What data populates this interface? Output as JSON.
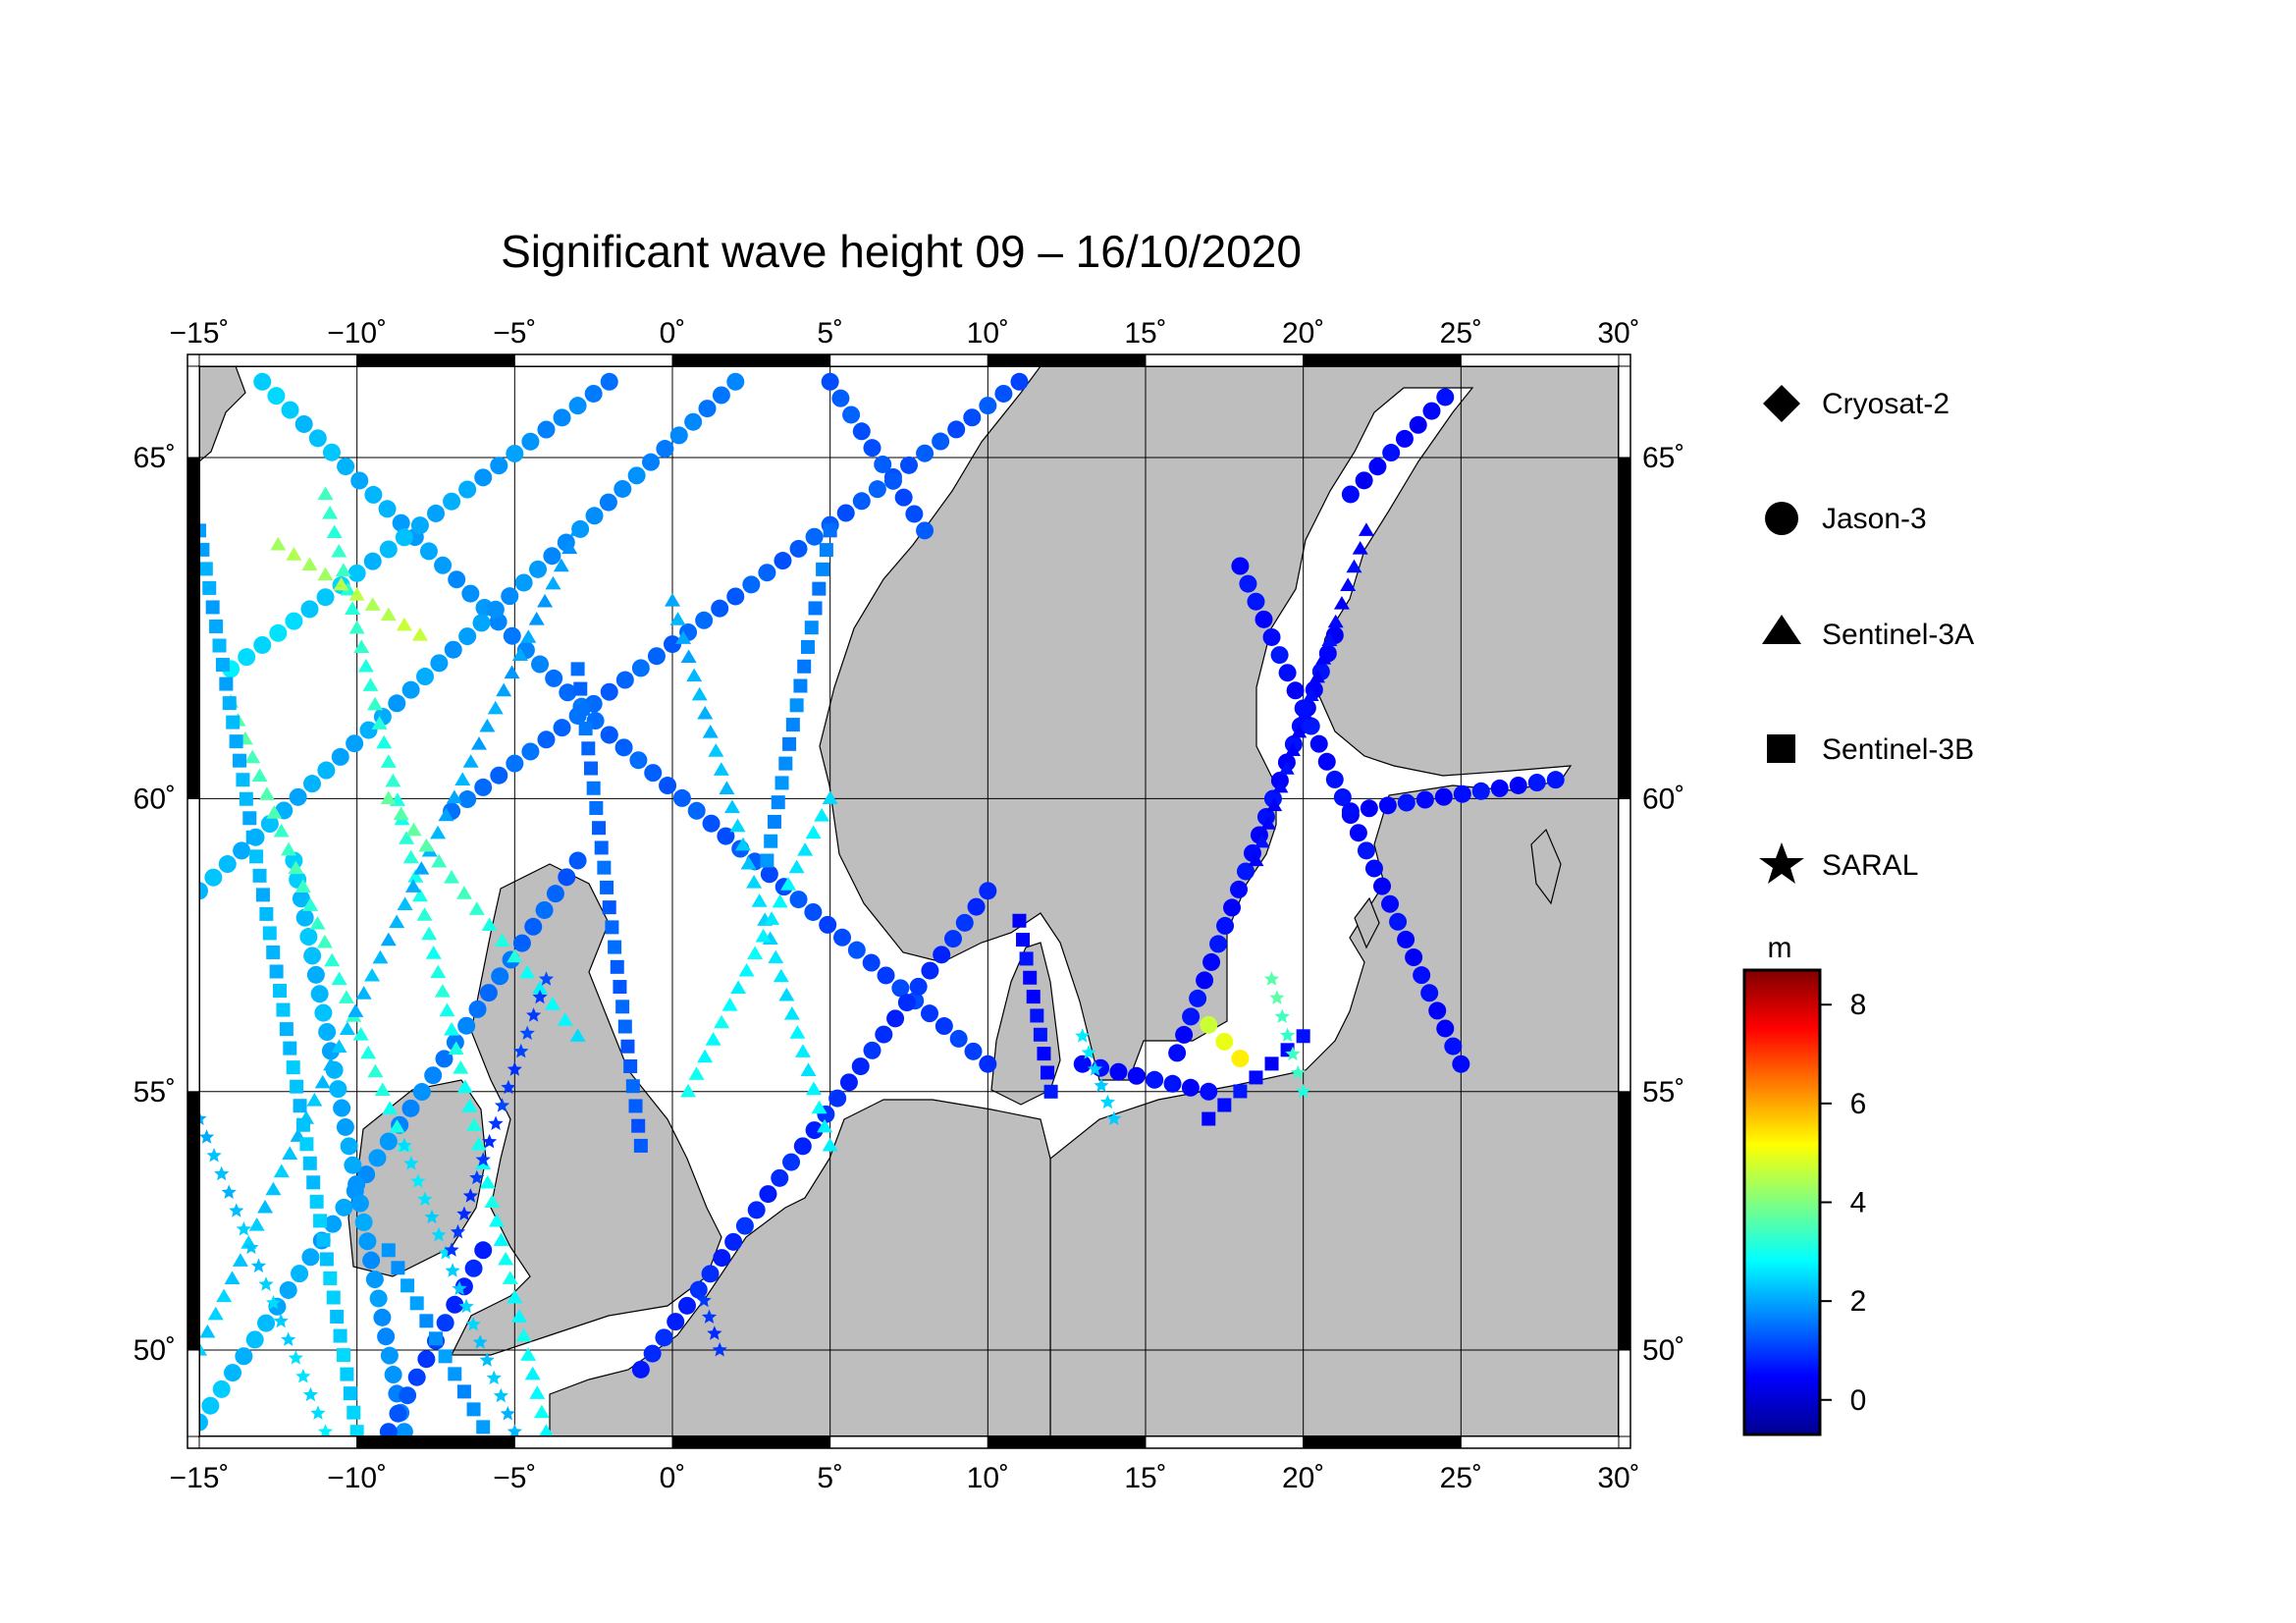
{
  "title": "Significant wave height 09 – 16/10/2020",
  "map": {
    "projection": "Mercator",
    "lon_range": [
      -15,
      30
    ],
    "lat_range": [
      48.2,
      66.2
    ],
    "lon_ticks": [
      {
        "value": -15,
        "label": "−15˚"
      },
      {
        "value": -10,
        "label": "−10˚"
      },
      {
        "value": -5,
        "label": "−5˚"
      },
      {
        "value": 0,
        "label": "0˚"
      },
      {
        "value": 5,
        "label": "5˚"
      },
      {
        "value": 10,
        "label": "10˚"
      },
      {
        "value": 15,
        "label": "15˚"
      },
      {
        "value": 20,
        "label": "20˚"
      },
      {
        "value": 25,
        "label": "25˚"
      },
      {
        "value": 30,
        "label": "30˚"
      }
    ],
    "lat_ticks": [
      {
        "value": 50,
        "label": "50˚"
      },
      {
        "value": 55,
        "label": "55˚"
      },
      {
        "value": 60,
        "label": "60˚"
      },
      {
        "value": 65,
        "label": "65˚"
      }
    ],
    "land_color": "#bebebe",
    "sea_color": "#ffffff",
    "grid": true
  },
  "legend": {
    "placement": "right",
    "items": [
      {
        "label": "Cryosat-2",
        "symbol": "diamond"
      },
      {
        "label": "Jason-3",
        "symbol": "circle"
      },
      {
        "label": "Sentinel-3A",
        "symbol": "triangle"
      },
      {
        "label": "Sentinel-3B",
        "symbol": "square"
      },
      {
        "label": "SARAL",
        "symbol": "star"
      }
    ]
  },
  "colorbar": {
    "unit": "m",
    "range": [
      -0.7,
      8.7
    ],
    "ticks": [
      {
        "value": 0,
        "label": "0"
      },
      {
        "value": 2,
        "label": "2"
      },
      {
        "value": 4,
        "label": "4"
      },
      {
        "value": 6,
        "label": "6"
      },
      {
        "value": 8,
        "label": "8"
      }
    ],
    "colormap": [
      "#00008f",
      "#0000ff",
      "#0080ff",
      "#00ffff",
      "#80ff80",
      "#ffff00",
      "#ff8000",
      "#ff0000",
      "#800000"
    ]
  },
  "chart_data": {
    "type": "scatter",
    "x_label": "",
    "y_label": "",
    "color_variable": "significant wave height (m)",
    "tracks": [
      {
        "satellite": "Jason-3",
        "symbol": "circle",
        "from": [
          -13,
          66
        ],
        "to": [
          -2,
          61
        ],
        "hs": [
          2.4,
          1.4
        ]
      },
      {
        "satellite": "Jason-3",
        "symbol": "circle",
        "from": [
          -2,
          61
        ],
        "to": [
          10,
          55.5
        ],
        "hs": [
          1.4,
          1.0
        ]
      },
      {
        "satellite": "Jason-3",
        "symbol": "circle",
        "from": [
          2,
          66
        ],
        "to": [
          -15,
          58.5
        ],
        "hs": [
          1.6,
          2.2
        ]
      },
      {
        "satellite": "Jason-3",
        "symbol": "circle",
        "from": [
          10,
          58.5
        ],
        "to": [
          -1,
          49.6
        ],
        "hs": [
          0.9,
          0.8
        ]
      },
      {
        "satellite": "Jason-3",
        "symbol": "circle",
        "from": [
          11,
          66
        ],
        "to": [
          -7,
          59.8
        ],
        "hs": [
          1.2,
          1.5
        ]
      },
      {
        "satellite": "Jason-3",
        "symbol": "circle",
        "from": [
          -3,
          59
        ],
        "to": [
          -15,
          48.5
        ],
        "hs": [
          1.3,
          2.3
        ]
      },
      {
        "satellite": "Jason-3",
        "symbol": "circle",
        "from": [
          -2,
          66
        ],
        "to": [
          -14,
          62
        ],
        "hs": [
          1.6,
          2.6
        ]
      },
      {
        "satellite": "Jason-3",
        "symbol": "circle",
        "from": [
          -12,
          59
        ],
        "to": [
          -8.5,
          48.3
        ],
        "hs": [
          2.3,
          1.7
        ]
      },
      {
        "satellite": "Jason-3",
        "symbol": "circle",
        "from": [
          -6,
          52
        ],
        "to": [
          -9,
          48.3
        ],
        "hs": [
          0.7,
          1.3
        ]
      },
      {
        "satellite": "Jason-3",
        "symbol": "circle",
        "from": [
          5,
          66
        ],
        "to": [
          8,
          64
        ],
        "hs": [
          1.3,
          1.2
        ]
      },
      {
        "satellite": "Jason-3",
        "symbol": "circle",
        "from": [
          16,
          55.7
        ],
        "to": [
          21,
          62.5
        ],
        "hs": [
          0.6,
          0.5
        ]
      },
      {
        "satellite": "Jason-3",
        "symbol": "circle",
        "from": [
          18,
          63.5
        ],
        "to": [
          25,
          55.5
        ],
        "hs": [
          0.6,
          0.5
        ]
      },
      {
        "satellite": "Jason-3",
        "symbol": "circle",
        "from": [
          21.5,
          59.8
        ],
        "to": [
          28,
          60.3
        ],
        "hs": [
          0.5,
          0.6
        ]
      },
      {
        "satellite": "Jason-3",
        "symbol": "circle",
        "from": [
          21.5,
          64.5
        ],
        "to": [
          24.5,
          65.8
        ],
        "hs": [
          0.5,
          0.5
        ]
      },
      {
        "satellite": "Jason-3",
        "symbol": "circle",
        "from": [
          13,
          55.5
        ],
        "to": [
          17,
          55
        ],
        "hs": [
          0.5,
          0.6
        ]
      },
      {
        "satellite": "Sentinel-3A",
        "symbol": "triangle",
        "from": [
          -14,
          61.5
        ],
        "to": [
          -8.5,
          54
        ],
        "hs": [
          3.6,
          3.0
        ]
      },
      {
        "satellite": "Sentinel-3A",
        "symbol": "triangle",
        "from": [
          -11,
          64.5
        ],
        "to": [
          -4,
          48.3
        ],
        "hs": [
          3.3,
          2.8
        ]
      },
      {
        "satellite": "Sentinel-3A",
        "symbol": "triangle",
        "from": [
          0,
          63
        ],
        "to": [
          5,
          54
        ],
        "hs": [
          2.0,
          2.8
        ]
      },
      {
        "satellite": "Sentinel-3A",
        "symbol": "triangle",
        "from": [
          5,
          60
        ],
        "to": [
          0.5,
          55
        ],
        "hs": [
          2.6,
          2.9
        ]
      },
      {
        "satellite": "Sentinel-3A",
        "symbol": "triangle",
        "from": [
          18.5,
          59
        ],
        "to": [
          22,
          64
        ],
        "hs": [
          0.5,
          0.5
        ]
      },
      {
        "satellite": "Sentinel-3A",
        "symbol": "triangle",
        "from": [
          -3,
          64
        ],
        "to": [
          -15,
          50
        ],
        "hs": [
          1.9,
          2.4
        ]
      },
      {
        "satellite": "Sentinel-3A",
        "symbol": "triangle",
        "from": [
          -9,
          60
        ],
        "to": [
          -3,
          56
        ],
        "hs": [
          3.8,
          2.6
        ]
      },
      {
        "satellite": "Sentinel-3B",
        "symbol": "square",
        "from": [
          -15,
          64
        ],
        "to": [
          -10,
          48.3
        ],
        "hs": [
          2.0,
          2.4
        ]
      },
      {
        "satellite": "Sentinel-3B",
        "symbol": "square",
        "from": [
          -3,
          62
        ],
        "to": [
          -1,
          54
        ],
        "hs": [
          1.5,
          1.3
        ]
      },
      {
        "satellite": "Sentinel-3B",
        "symbol": "square",
        "from": [
          5,
          64
        ],
        "to": [
          3,
          59
        ],
        "hs": [
          1.6,
          1.8
        ]
      },
      {
        "satellite": "Sentinel-3B",
        "symbol": "square",
        "from": [
          17,
          54.5
        ],
        "to": [
          20,
          56
        ],
        "hs": [
          0.6,
          0.5
        ]
      },
      {
        "satellite": "Sentinel-3B",
        "symbol": "square",
        "from": [
          11,
          58
        ],
        "to": [
          12,
          55
        ],
        "hs": [
          0.5,
          0.6
        ]
      },
      {
        "satellite": "Sentinel-3B",
        "symbol": "square",
        "from": [
          -9,
          52
        ],
        "to": [
          -6,
          48.4
        ],
        "hs": [
          1.9,
          1.8
        ]
      },
      {
        "satellite": "SARAL",
        "symbol": "star",
        "from": [
          -15,
          54.5
        ],
        "to": [
          -11,
          48.3
        ],
        "hs": [
          2.1,
          2.6
        ]
      },
      {
        "satellite": "SARAL",
        "symbol": "star",
        "from": [
          -8.5,
          54
        ],
        "to": [
          -5,
          48.3
        ],
        "hs": [
          2.6,
          2.2
        ]
      },
      {
        "satellite": "SARAL",
        "symbol": "star",
        "from": [
          -4,
          57
        ],
        "to": [
          -7,
          52
        ],
        "hs": [
          1.1,
          0.9
        ]
      },
      {
        "satellite": "SARAL",
        "symbol": "star",
        "from": [
          13,
          56
        ],
        "to": [
          14,
          54.5
        ],
        "hs": [
          2.6,
          2.3
        ]
      },
      {
        "satellite": "SARAL",
        "symbol": "star",
        "from": [
          19,
          57
        ],
        "to": [
          20,
          55
        ],
        "hs": [
          3.6,
          3.2
        ]
      },
      {
        "satellite": "SARAL",
        "symbol": "star",
        "from": [
          1,
          51
        ],
        "to": [
          1.5,
          50
        ],
        "hs": [
          0.9,
          1.0
        ]
      },
      {
        "satellite": "Jason-3",
        "symbol": "circle",
        "from": [
          17,
          56.2
        ],
        "to": [
          18,
          55.6
        ],
        "hs": [
          4.8,
          5.2
        ]
      },
      {
        "satellite": "Sentinel-3A",
        "symbol": "triangle",
        "from": [
          -12.5,
          63.8
        ],
        "to": [
          -8,
          62.5
        ],
        "hs": [
          4.3,
          4.6
        ]
      }
    ]
  }
}
